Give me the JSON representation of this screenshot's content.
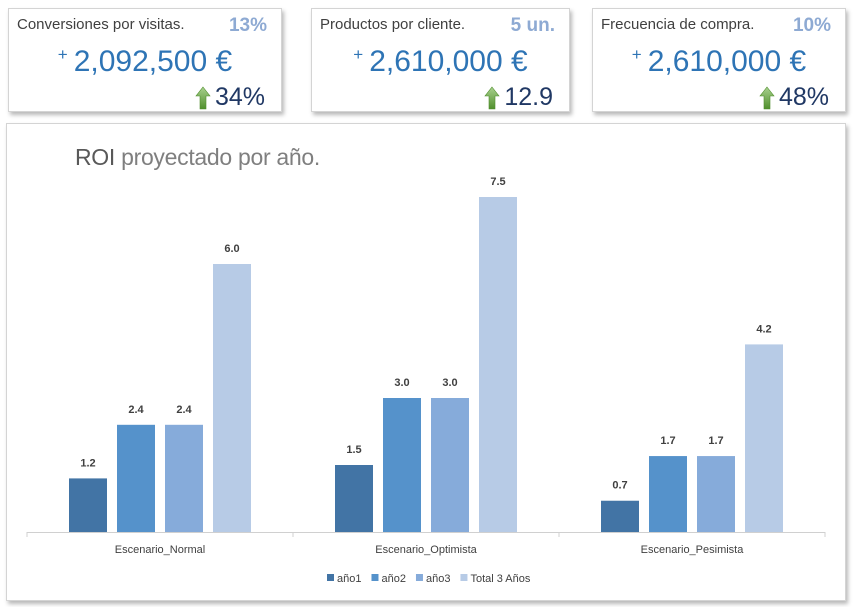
{
  "kpis": [
    {
      "title": "Conversiones por visitas.",
      "badge": "13%",
      "plus": "+",
      "value": "2,092,500 €",
      "change": "34%"
    },
    {
      "title": "Productos por cliente.",
      "badge": "5 un.",
      "plus": "+",
      "value": "2,610,000 €",
      "change": "12.9"
    },
    {
      "title": "Frecuencia de compra.",
      "badge": "10%",
      "plus": "+",
      "value": "2,610,000 €",
      "change": "48%"
    }
  ],
  "icons": {
    "change": "up-arrow-icon"
  },
  "colors": {
    "kpi_value": "#2e74b5",
    "badge": "#8eaad3",
    "arrow": "#70ad47"
  },
  "chart_data": {
    "type": "bar",
    "title_strong": "ROI",
    "title_rest": " proyectado por año.",
    "categories": [
      "Escenario_Normal",
      "Escenario_Optimista",
      "Escenario_Pesimista"
    ],
    "series": [
      {
        "name": "año1",
        "values": [
          1.2,
          1.5,
          0.7
        ],
        "color": "#4274a5"
      },
      {
        "name": "año2",
        "values": [
          2.4,
          3.0,
          1.7
        ],
        "color": "#5592cb"
      },
      {
        "name": "año3",
        "values": [
          2.4,
          3.0,
          1.7
        ],
        "color": "#86abda"
      },
      {
        "name": "Total 3 Años",
        "values": [
          6.0,
          7.5,
          4.2
        ],
        "color": "#b7cbe6"
      }
    ],
    "ylim": [
      0,
      7.5
    ],
    "grid": false,
    "legend_position": "bottom",
    "data_labels": true
  }
}
